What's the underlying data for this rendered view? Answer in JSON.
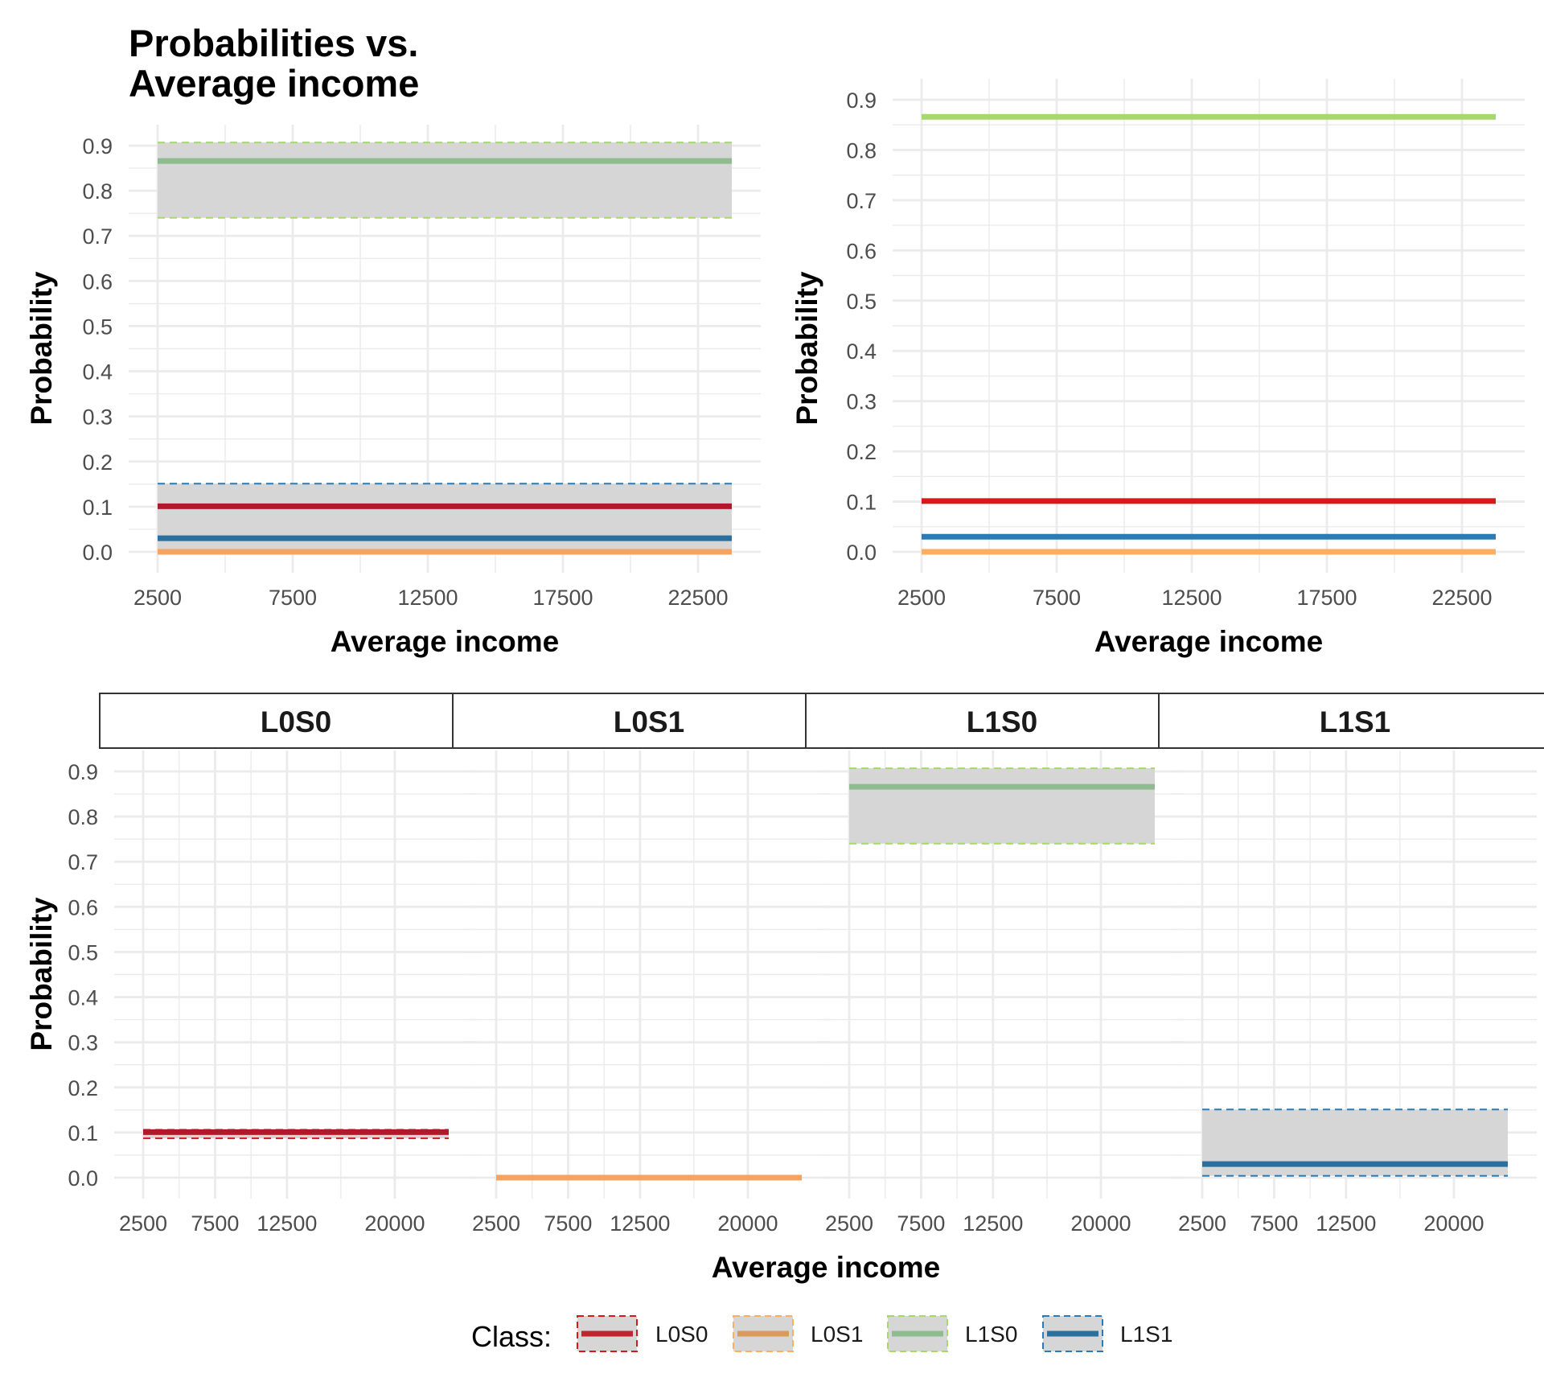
{
  "chart_data": [
    {
      "type": "line",
      "panel": "top-left",
      "title": [
        "Probabilities vs.",
        "Average income"
      ],
      "xlabel": "Average income",
      "ylabel": "Probability",
      "xlim": [
        2500,
        23750
      ],
      "ylim": [
        0,
        0.9
      ],
      "xticks": [
        2500,
        7500,
        12500,
        17500,
        22500
      ],
      "xtick_labels": [
        "2500",
        "7500",
        "12500",
        "17500",
        "22500"
      ],
      "yticks": [
        0,
        0.1,
        0.2,
        0.3,
        0.4,
        0.5,
        0.6,
        0.7,
        0.8,
        0.9
      ],
      "ytick_labels": [
        "0.0",
        "0.1",
        "0.2",
        "0.3",
        "0.4",
        "0.5",
        "0.6",
        "0.7",
        "0.8",
        "0.9"
      ],
      "grid": true,
      "ribbons": true,
      "series": [
        {
          "name": "L0S0",
          "x": [
            2500,
            23750
          ],
          "y": [
            0.101,
            0.101
          ],
          "lower": 0.087,
          "upper": 0.106
        },
        {
          "name": "L0S1",
          "x": [
            2500,
            23750
          ],
          "y": [
            0.0,
            0.0
          ],
          "lower": 0.0,
          "upper": 0.0
        },
        {
          "name": "L1S0",
          "x": [
            2500,
            23750
          ],
          "y": [
            0.866,
            0.866
          ],
          "lower": 0.74,
          "upper": 0.907
        },
        {
          "name": "L1S1",
          "x": [
            2500,
            23750
          ],
          "y": [
            0.03,
            0.03
          ],
          "lower": 0.004,
          "upper": 0.151
        }
      ]
    },
    {
      "type": "line",
      "panel": "top-right",
      "xlabel": "Average income",
      "ylabel": "Probability",
      "xlim": [
        2500,
        23750
      ],
      "ylim": [
        0,
        0.9
      ],
      "xticks": [
        2500,
        7500,
        12500,
        17500,
        22500
      ],
      "xtick_labels": [
        "2500",
        "7500",
        "12500",
        "17500",
        "22500"
      ],
      "yticks": [
        0,
        0.1,
        0.2,
        0.3,
        0.4,
        0.5,
        0.6,
        0.7,
        0.8,
        0.9
      ],
      "ytick_labels": [
        "0.0",
        "0.1",
        "0.2",
        "0.3",
        "0.4",
        "0.5",
        "0.6",
        "0.7",
        "0.8",
        "0.9"
      ],
      "grid": true,
      "ribbons": false,
      "series": [
        {
          "name": "L0S0",
          "x": [
            2500,
            23750
          ],
          "y": [
            0.101,
            0.101
          ]
        },
        {
          "name": "L0S1",
          "x": [
            2500,
            23750
          ],
          "y": [
            0.0,
            0.0
          ]
        },
        {
          "name": "L1S0",
          "x": [
            2500,
            23750
          ],
          "y": [
            0.866,
            0.866
          ]
        },
        {
          "name": "L1S1",
          "x": [
            2500,
            23750
          ],
          "y": [
            0.03,
            0.03
          ]
        }
      ]
    },
    {
      "type": "line",
      "panel": "facets",
      "xlabel": "Average income",
      "ylabel": "Probability",
      "xlim": [
        2500,
        23750
      ],
      "ylim": [
        0,
        0.9
      ],
      "xticks": [
        2500,
        7500,
        12500,
        20000
      ],
      "xtick_labels": [
        "2500",
        "7500",
        "12500",
        "20000"
      ],
      "yticks": [
        0,
        0.1,
        0.2,
        0.3,
        0.4,
        0.5,
        0.6,
        0.7,
        0.8,
        0.9
      ],
      "ytick_labels": [
        "0.0",
        "0.1",
        "0.2",
        "0.3",
        "0.4",
        "0.5",
        "0.6",
        "0.7",
        "0.8",
        "0.9"
      ],
      "grid": true,
      "facets": [
        {
          "label": "L0S0",
          "series": "L0S0",
          "y": 0.101,
          "lower": 0.087,
          "upper": 0.106
        },
        {
          "label": "L0S1",
          "series": "L0S1",
          "y": 0.0,
          "lower": 0.0,
          "upper": 0.0
        },
        {
          "label": "L1S0",
          "series": "L1S0",
          "y": 0.866,
          "lower": 0.74,
          "upper": 0.907
        },
        {
          "label": "L1S1",
          "series": "L1S1",
          "y": 0.03,
          "lower": 0.004,
          "upper": 0.151
        }
      ]
    }
  ],
  "legend": {
    "title": "Class:",
    "position": "bottom",
    "items": [
      "L0S0",
      "L0S1",
      "L1S0",
      "L1S1"
    ]
  },
  "colors": {
    "ribbon_fill": "#d6d6d6",
    "grid": "#ebebeb",
    "series_ribbon_panels": {
      "L0S0": "#b2182b",
      "L0S1": "#f4a460",
      "L1S0": "#8fbc8f",
      "L1S1": "#2b6f9e"
    },
    "series_plain_panel": {
      "L0S0": "#d7191c",
      "L0S1": "#fdae61",
      "L1S0": "#a6d96a",
      "L1S1": "#2c7bb6"
    },
    "ribbon_borders": {
      "L0S0": "#d7191c",
      "L0S1": "#fdae61",
      "L1S0": "#a6d96a",
      "L1S1": "#2c7bb6"
    },
    "legend_lines": {
      "L0S0": "#c0262d",
      "L0S1": "#d99a5a",
      "L1S0": "#8fbc8f",
      "L1S1": "#2b6f9e"
    }
  }
}
